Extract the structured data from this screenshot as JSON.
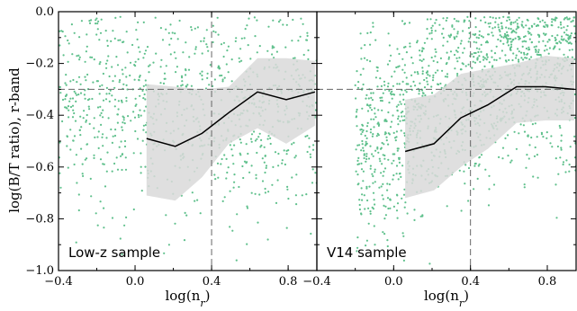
{
  "chart_data": {
    "type": "scatter",
    "ylabel": "log(B/T ratio), r-band",
    "xlim": [
      -0.4,
      0.95
    ],
    "ylim": [
      -1.0,
      0.0
    ],
    "reference_lines": {
      "x": 0.4,
      "y": -0.3
    },
    "colors": {
      "points": "#5fc08c",
      "band": "#d9d9d9",
      "median": "#000000",
      "frame": "#000000"
    },
    "panels": [
      {
        "label": "Low-z sample",
        "xlabel": "log(n_r)",
        "xticks": [
          -0.4,
          0.0,
          0.4,
          0.8
        ],
        "xtick_labels": [
          "−0.4",
          "0.0",
          "0.4",
          "0.8"
        ],
        "yticks": [
          0.0,
          -0.2,
          -0.4,
          -0.6,
          -0.8,
          -1.0
        ],
        "ytick_labels": [
          "0.0",
          "−0.2",
          "−0.4",
          "−0.6",
          "−0.8",
          "−1.0"
        ],
        "median": {
          "x": [
            0.06,
            0.21,
            0.35,
            0.49,
            0.64,
            0.79,
            0.94
          ],
          "y": [
            -0.49,
            -0.52,
            -0.47,
            -0.39,
            -0.31,
            -0.34,
            -0.31
          ]
        },
        "band": {
          "x": [
            0.06,
            0.21,
            0.35,
            0.49,
            0.64,
            0.79,
            0.94
          ],
          "upper": [
            -0.28,
            -0.29,
            -0.3,
            -0.29,
            -0.18,
            -0.18,
            -0.19
          ],
          "lower": [
            -0.71,
            -0.73,
            -0.64,
            -0.51,
            -0.45,
            -0.51,
            -0.44
          ]
        },
        "scatter": {
          "n": 900,
          "seed": 17,
          "x_range": [
            -0.4,
            0.95
          ],
          "trend": "flat"
        }
      },
      {
        "label": "V14 sample",
        "xlabel": "log(n_r)",
        "xticks": [
          -0.4,
          0.0,
          0.4,
          0.8
        ],
        "xtick_labels": [
          "−0.4",
          "0.0",
          "0.4",
          "0.8"
        ],
        "yticks": [],
        "ytick_labels": [],
        "median": {
          "x": [
            0.06,
            0.21,
            0.35,
            0.49,
            0.64,
            0.79,
            0.94
          ],
          "y": [
            -0.54,
            -0.51,
            -0.41,
            -0.36,
            -0.29,
            -0.29,
            -0.3
          ]
        },
        "band": {
          "x": [
            0.06,
            0.21,
            0.35,
            0.49,
            0.64,
            0.79,
            0.94
          ],
          "upper": [
            -0.34,
            -0.32,
            -0.24,
            -0.22,
            -0.2,
            -0.17,
            -0.18
          ],
          "lower": [
            -0.72,
            -0.69,
            -0.6,
            -0.53,
            -0.43,
            -0.42,
            -0.42
          ]
        },
        "scatter": {
          "n": 1400,
          "seed": 29,
          "x_range": [
            -0.2,
            0.95
          ],
          "trend": "rising"
        }
      }
    ]
  }
}
